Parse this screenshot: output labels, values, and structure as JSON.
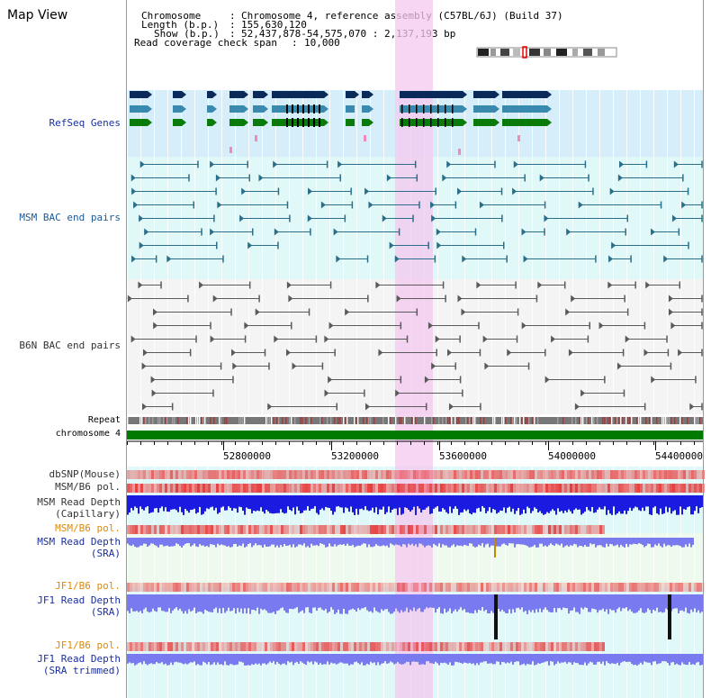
{
  "page": {
    "title": "Map View"
  },
  "info": {
    "chromosome_key": "Chromosome",
    "chromosome_val": "Chromosome 4, reference assembly (C57BL/6J) (Build 37)",
    "length_key": "Length (b.p.)",
    "length_val": "155,630,120",
    "show_key": "Show (b.p.)",
    "show_val": "52,437,878-54,575,070 : 2,137,193 bp",
    "coverage_key": "Read coverage check span",
    "coverage_val": "10,000"
  },
  "tracks": {
    "refseq": "RefSeq Genes",
    "msm_bac": "MSM BAC end pairs",
    "b6n_bac": "B6N BAC end pairs",
    "repeat": "Repeat",
    "chromosome": "chromosome 4",
    "dbsnp": "dbSNP(Mouse)",
    "msm_b6_pol_1": "MSM/B6 pol.",
    "msm_depth_cap_1": "MSM Read Depth",
    "msm_depth_cap_2": "(Capillary)",
    "msm_b6_pol_2": "MSM/B6 pol.",
    "msm_depth_sra_1": "MSM Read Depth",
    "msm_depth_sra_2": "(SRA)",
    "jf1_pol_1": "JF1/B6 pol.",
    "jf1_depth_sra_1": "JF1 Read Depth",
    "jf1_depth_sra_2": "(SRA)",
    "jf1_pol_2": "JF1/B6 pol.",
    "jf1_depth_trim_1": "JF1 Read Depth",
    "jf1_depth_trim_2": "(SRA trimmed)"
  },
  "axis": {
    "ticks": [
      "52800000",
      "53200000",
      "53600000",
      "54000000",
      "54400000"
    ]
  },
  "colors": {
    "highlight": "#f4c8f0",
    "refseq_bg": "#d6eefa",
    "msm_bg": "#e0f8f8",
    "gene_navy": "#0a2a5a",
    "gene_steel": "#3a8ab0",
    "gene_green": "#0a7a0a",
    "chrom_bar": "#007a00",
    "depth_blue": "#1a1ae0",
    "depth_light": "#7a7af0"
  }
}
